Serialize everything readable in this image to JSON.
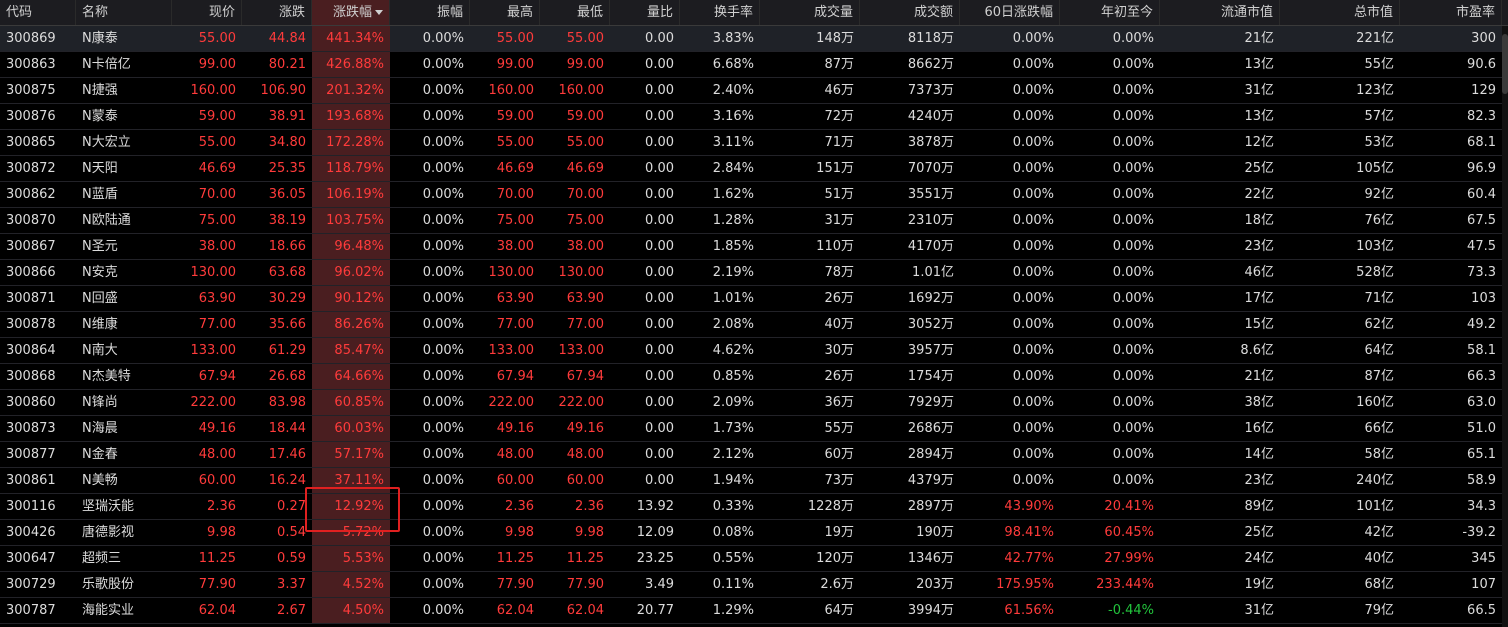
{
  "colors": {
    "up": "#ff3b3b",
    "down": "#22c33c",
    "flat": "#dcdcdc",
    "sorted_column_bg": "#4a1e20",
    "highlight_border": "#e02020"
  },
  "columns": [
    {
      "key": "code",
      "label": "代码",
      "align": "left"
    },
    {
      "key": "name",
      "label": "名称",
      "align": "left"
    },
    {
      "key": "price",
      "label": "现价"
    },
    {
      "key": "change",
      "label": "涨跌"
    },
    {
      "key": "pct",
      "label": "涨跌幅",
      "sorted": "desc"
    },
    {
      "key": "amplitude",
      "label": "振幅"
    },
    {
      "key": "high",
      "label": "最高"
    },
    {
      "key": "low",
      "label": "最低"
    },
    {
      "key": "vol_ratio",
      "label": "量比"
    },
    {
      "key": "turnover",
      "label": "换手率"
    },
    {
      "key": "volume",
      "label": "成交量"
    },
    {
      "key": "amount",
      "label": "成交额"
    },
    {
      "key": "chg60",
      "label": "60日涨跌幅"
    },
    {
      "key": "ytd",
      "label": "年初至今"
    },
    {
      "key": "float_cap",
      "label": "流通市值"
    },
    {
      "key": "total_cap",
      "label": "总市值"
    },
    {
      "key": "pe",
      "label": "市盈率"
    }
  ],
  "rows": [
    {
      "code": "300869",
      "name": "N康泰",
      "price": "55.00",
      "change": "44.84",
      "pct": "441.34%",
      "amplitude": "0.00%",
      "high": "55.00",
      "low": "55.00",
      "vol_ratio": "0.00",
      "turnover": "3.83%",
      "volume": "148万",
      "amount": "8118万",
      "chg60": "0.00%",
      "ytd": "0.00%",
      "float_cap": "21亿",
      "total_cap": "221亿",
      "pe": "300",
      "chg60_color": "flat",
      "ytd_color": "flat"
    },
    {
      "code": "300863",
      "name": "N卡倍亿",
      "price": "99.00",
      "change": "80.21",
      "pct": "426.88%",
      "amplitude": "0.00%",
      "high": "99.00",
      "low": "99.00",
      "vol_ratio": "0.00",
      "turnover": "6.68%",
      "volume": "87万",
      "amount": "8662万",
      "chg60": "0.00%",
      "ytd": "0.00%",
      "float_cap": "13亿",
      "total_cap": "55亿",
      "pe": "90.6",
      "chg60_color": "flat",
      "ytd_color": "flat"
    },
    {
      "code": "300875",
      "name": "N捷强",
      "price": "160.00",
      "change": "106.90",
      "pct": "201.32%",
      "amplitude": "0.00%",
      "high": "160.00",
      "low": "160.00",
      "vol_ratio": "0.00",
      "turnover": "2.40%",
      "volume": "46万",
      "amount": "7373万",
      "chg60": "0.00%",
      "ytd": "0.00%",
      "float_cap": "31亿",
      "total_cap": "123亿",
      "pe": "129",
      "chg60_color": "flat",
      "ytd_color": "flat"
    },
    {
      "code": "300876",
      "name": "N蒙泰",
      "price": "59.00",
      "change": "38.91",
      "pct": "193.68%",
      "amplitude": "0.00%",
      "high": "59.00",
      "low": "59.00",
      "vol_ratio": "0.00",
      "turnover": "3.16%",
      "volume": "72万",
      "amount": "4240万",
      "chg60": "0.00%",
      "ytd": "0.00%",
      "float_cap": "13亿",
      "total_cap": "57亿",
      "pe": "82.3",
      "chg60_color": "flat",
      "ytd_color": "flat"
    },
    {
      "code": "300865",
      "name": "N大宏立",
      "price": "55.00",
      "change": "34.80",
      "pct": "172.28%",
      "amplitude": "0.00%",
      "high": "55.00",
      "low": "55.00",
      "vol_ratio": "0.00",
      "turnover": "3.11%",
      "volume": "71万",
      "amount": "3878万",
      "chg60": "0.00%",
      "ytd": "0.00%",
      "float_cap": "12亿",
      "total_cap": "53亿",
      "pe": "68.1",
      "chg60_color": "flat",
      "ytd_color": "flat"
    },
    {
      "code": "300872",
      "name": "N天阳",
      "price": "46.69",
      "change": "25.35",
      "pct": "118.79%",
      "amplitude": "0.00%",
      "high": "46.69",
      "low": "46.69",
      "vol_ratio": "0.00",
      "turnover": "2.84%",
      "volume": "151万",
      "amount": "7070万",
      "chg60": "0.00%",
      "ytd": "0.00%",
      "float_cap": "25亿",
      "total_cap": "105亿",
      "pe": "96.9",
      "chg60_color": "flat",
      "ytd_color": "flat"
    },
    {
      "code": "300862",
      "name": "N蓝盾",
      "price": "70.00",
      "change": "36.05",
      "pct": "106.19%",
      "amplitude": "0.00%",
      "high": "70.00",
      "low": "70.00",
      "vol_ratio": "0.00",
      "turnover": "1.62%",
      "volume": "51万",
      "amount": "3551万",
      "chg60": "0.00%",
      "ytd": "0.00%",
      "float_cap": "22亿",
      "total_cap": "92亿",
      "pe": "60.4",
      "chg60_color": "flat",
      "ytd_color": "flat"
    },
    {
      "code": "300870",
      "name": "N欧陆通",
      "price": "75.00",
      "change": "38.19",
      "pct": "103.75%",
      "amplitude": "0.00%",
      "high": "75.00",
      "low": "75.00",
      "vol_ratio": "0.00",
      "turnover": "1.28%",
      "volume": "31万",
      "amount": "2310万",
      "chg60": "0.00%",
      "ytd": "0.00%",
      "float_cap": "18亿",
      "total_cap": "76亿",
      "pe": "67.5",
      "chg60_color": "flat",
      "ytd_color": "flat"
    },
    {
      "code": "300867",
      "name": "N圣元",
      "price": "38.00",
      "change": "18.66",
      "pct": "96.48%",
      "amplitude": "0.00%",
      "high": "38.00",
      "low": "38.00",
      "vol_ratio": "0.00",
      "turnover": "1.85%",
      "volume": "110万",
      "amount": "4170万",
      "chg60": "0.00%",
      "ytd": "0.00%",
      "float_cap": "23亿",
      "total_cap": "103亿",
      "pe": "47.5",
      "chg60_color": "flat",
      "ytd_color": "flat"
    },
    {
      "code": "300866",
      "name": "N安克",
      "price": "130.00",
      "change": "63.68",
      "pct": "96.02%",
      "amplitude": "0.00%",
      "high": "130.00",
      "low": "130.00",
      "vol_ratio": "0.00",
      "turnover": "2.19%",
      "volume": "78万",
      "amount": "1.01亿",
      "chg60": "0.00%",
      "ytd": "0.00%",
      "float_cap": "46亿",
      "total_cap": "528亿",
      "pe": "73.3",
      "chg60_color": "flat",
      "ytd_color": "flat"
    },
    {
      "code": "300871",
      "name": "N回盛",
      "price": "63.90",
      "change": "30.29",
      "pct": "90.12%",
      "amplitude": "0.00%",
      "high": "63.90",
      "low": "63.90",
      "vol_ratio": "0.00",
      "turnover": "1.01%",
      "volume": "26万",
      "amount": "1692万",
      "chg60": "0.00%",
      "ytd": "0.00%",
      "float_cap": "17亿",
      "total_cap": "71亿",
      "pe": "103",
      "chg60_color": "flat",
      "ytd_color": "flat"
    },
    {
      "code": "300878",
      "name": "N维康",
      "price": "77.00",
      "change": "35.66",
      "pct": "86.26%",
      "amplitude": "0.00%",
      "high": "77.00",
      "low": "77.00",
      "vol_ratio": "0.00",
      "turnover": "2.08%",
      "volume": "40万",
      "amount": "3052万",
      "chg60": "0.00%",
      "ytd": "0.00%",
      "float_cap": "15亿",
      "total_cap": "62亿",
      "pe": "49.2",
      "chg60_color": "flat",
      "ytd_color": "flat"
    },
    {
      "code": "300864",
      "name": "N南大",
      "price": "133.00",
      "change": "61.29",
      "pct": "85.47%",
      "amplitude": "0.00%",
      "high": "133.00",
      "low": "133.00",
      "vol_ratio": "0.00",
      "turnover": "4.62%",
      "volume": "30万",
      "amount": "3957万",
      "chg60": "0.00%",
      "ytd": "0.00%",
      "float_cap": "8.6亿",
      "total_cap": "64亿",
      "pe": "58.1",
      "chg60_color": "flat",
      "ytd_color": "flat"
    },
    {
      "code": "300868",
      "name": "N杰美特",
      "price": "67.94",
      "change": "26.68",
      "pct": "64.66%",
      "amplitude": "0.00%",
      "high": "67.94",
      "low": "67.94",
      "vol_ratio": "0.00",
      "turnover": "0.85%",
      "volume": "26万",
      "amount": "1754万",
      "chg60": "0.00%",
      "ytd": "0.00%",
      "float_cap": "21亿",
      "total_cap": "87亿",
      "pe": "66.3",
      "chg60_color": "flat",
      "ytd_color": "flat"
    },
    {
      "code": "300860",
      "name": "N锋尚",
      "price": "222.00",
      "change": "83.98",
      "pct": "60.85%",
      "amplitude": "0.00%",
      "high": "222.00",
      "low": "222.00",
      "vol_ratio": "0.00",
      "turnover": "2.09%",
      "volume": "36万",
      "amount": "7929万",
      "chg60": "0.00%",
      "ytd": "0.00%",
      "float_cap": "38亿",
      "total_cap": "160亿",
      "pe": "63.0",
      "chg60_color": "flat",
      "ytd_color": "flat"
    },
    {
      "code": "300873",
      "name": "N海晨",
      "price": "49.16",
      "change": "18.44",
      "pct": "60.03%",
      "amplitude": "0.00%",
      "high": "49.16",
      "low": "49.16",
      "vol_ratio": "0.00",
      "turnover": "1.73%",
      "volume": "55万",
      "amount": "2686万",
      "chg60": "0.00%",
      "ytd": "0.00%",
      "float_cap": "16亿",
      "total_cap": "66亿",
      "pe": "51.0",
      "chg60_color": "flat",
      "ytd_color": "flat"
    },
    {
      "code": "300877",
      "name": "N金春",
      "price": "48.00",
      "change": "17.46",
      "pct": "57.17%",
      "amplitude": "0.00%",
      "high": "48.00",
      "low": "48.00",
      "vol_ratio": "0.00",
      "turnover": "2.12%",
      "volume": "60万",
      "amount": "2894万",
      "chg60": "0.00%",
      "ytd": "0.00%",
      "float_cap": "14亿",
      "total_cap": "58亿",
      "pe": "65.1",
      "chg60_color": "flat",
      "ytd_color": "flat"
    },
    {
      "code": "300861",
      "name": "N美畅",
      "price": "60.00",
      "change": "16.24",
      "pct": "37.11%",
      "amplitude": "0.00%",
      "high": "60.00",
      "low": "60.00",
      "vol_ratio": "0.00",
      "turnover": "1.94%",
      "volume": "73万",
      "amount": "4379万",
      "chg60": "0.00%",
      "ytd": "0.00%",
      "float_cap": "23亿",
      "total_cap": "240亿",
      "pe": "58.9",
      "chg60_color": "flat",
      "ytd_color": "flat"
    },
    {
      "code": "300116",
      "name": "坚瑞沃能",
      "price": "2.36",
      "change": "0.27",
      "pct": "12.92%",
      "amplitude": "0.00%",
      "high": "2.36",
      "low": "2.36",
      "vol_ratio": "13.92",
      "turnover": "0.33%",
      "volume": "1228万",
      "amount": "2897万",
      "chg60": "43.90%",
      "ytd": "20.41%",
      "float_cap": "89亿",
      "total_cap": "101亿",
      "pe": "34.3",
      "chg60_color": "up",
      "ytd_color": "up"
    },
    {
      "code": "300426",
      "name": "唐德影视",
      "price": "9.98",
      "change": "0.54",
      "pct": "5.72%",
      "amplitude": "0.00%",
      "high": "9.98",
      "low": "9.98",
      "vol_ratio": "12.09",
      "turnover": "0.08%",
      "volume": "19万",
      "amount": "190万",
      "chg60": "98.41%",
      "ytd": "60.45%",
      "float_cap": "25亿",
      "total_cap": "42亿",
      "pe": "-39.2",
      "chg60_color": "up",
      "ytd_color": "up"
    },
    {
      "code": "300647",
      "name": "超频三",
      "price": "11.25",
      "change": "0.59",
      "pct": "5.53%",
      "amplitude": "0.00%",
      "high": "11.25",
      "low": "11.25",
      "vol_ratio": "23.25",
      "turnover": "0.55%",
      "volume": "120万",
      "amount": "1346万",
      "chg60": "42.77%",
      "ytd": "27.99%",
      "float_cap": "24亿",
      "total_cap": "40亿",
      "pe": "345",
      "chg60_color": "up",
      "ytd_color": "up"
    },
    {
      "code": "300729",
      "name": "乐歌股份",
      "price": "77.90",
      "change": "3.37",
      "pct": "4.52%",
      "amplitude": "0.00%",
      "high": "77.90",
      "low": "77.90",
      "vol_ratio": "3.49",
      "turnover": "0.11%",
      "volume": "2.6万",
      "amount": "203万",
      "chg60": "175.95%",
      "ytd": "233.44%",
      "float_cap": "19亿",
      "total_cap": "68亿",
      "pe": "107",
      "chg60_color": "up",
      "ytd_color": "up"
    },
    {
      "code": "300787",
      "name": "海能实业",
      "price": "62.04",
      "change": "2.67",
      "pct": "4.50%",
      "amplitude": "0.00%",
      "high": "62.04",
      "low": "62.04",
      "vol_ratio": "20.77",
      "turnover": "1.29%",
      "volume": "64万",
      "amount": "3994万",
      "chg60": "61.56%",
      "ytd": "-0.44%",
      "float_cap": "31亿",
      "total_cap": "79亿",
      "pe": "66.5",
      "chg60_color": "up",
      "ytd_color": "down"
    }
  ]
}
